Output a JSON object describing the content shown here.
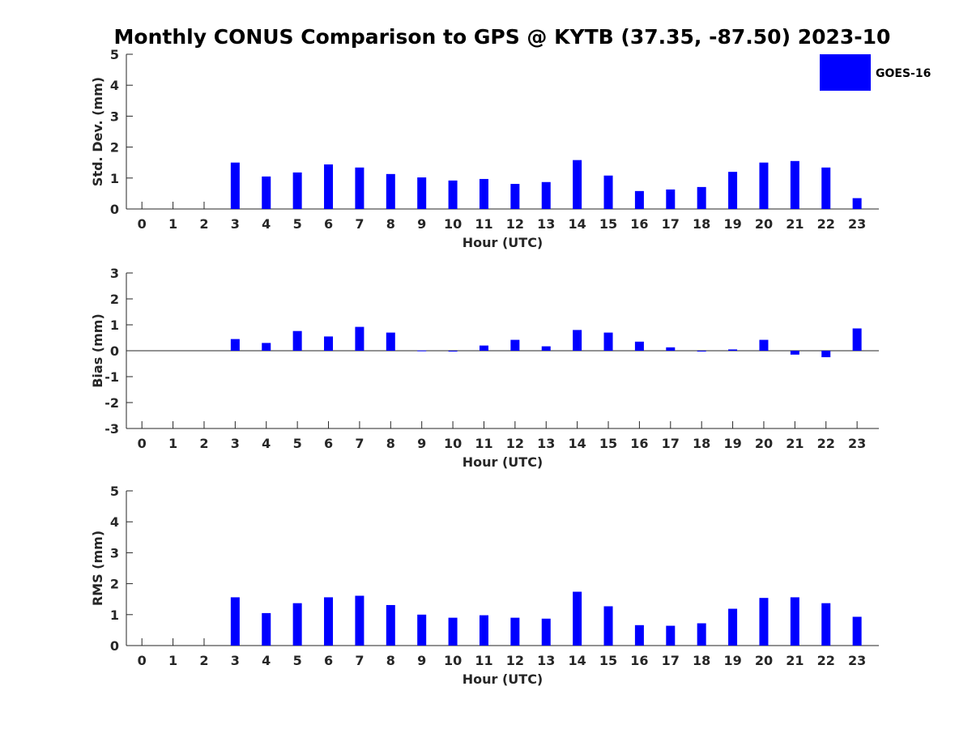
{
  "title": "Monthly CONUS Comparison to GPS @ KYTB (37.35, -87.50) 2023-10",
  "legend": {
    "label": "GOES-16",
    "color": "#0000ff",
    "placement": "top-right"
  },
  "chart_data": [
    {
      "type": "bar",
      "name": "std-dev",
      "xlabel": "Hour (UTC)",
      "ylabel": "Std. Dev. (mm)",
      "ylim": [
        0,
        5
      ],
      "yticks": [
        0,
        1,
        2,
        3,
        4,
        5
      ],
      "categories": [
        "0",
        "1",
        "2",
        "3",
        "4",
        "5",
        "6",
        "7",
        "8",
        "9",
        "10",
        "11",
        "12",
        "13",
        "14",
        "15",
        "16",
        "17",
        "18",
        "19",
        "20",
        "21",
        "22",
        "23"
      ],
      "series": [
        {
          "name": "GOES-16",
          "values": [
            null,
            null,
            null,
            1.5,
            1.05,
            1.18,
            1.44,
            1.34,
            1.13,
            1.02,
            0.92,
            0.97,
            0.81,
            0.87,
            1.58,
            1.08,
            0.58,
            0.63,
            0.71,
            1.2,
            1.5,
            1.55,
            1.34,
            0.35
          ]
        }
      ]
    },
    {
      "type": "bar",
      "name": "bias",
      "xlabel": "Hour (UTC)",
      "ylabel": "Bias (mm)",
      "ylim": [
        -3,
        3
      ],
      "yticks": [
        -3,
        -2,
        -1,
        0,
        1,
        2,
        3
      ],
      "categories": [
        "0",
        "1",
        "2",
        "3",
        "4",
        "5",
        "6",
        "7",
        "8",
        "9",
        "10",
        "11",
        "12",
        "13",
        "14",
        "15",
        "16",
        "17",
        "18",
        "19",
        "20",
        "21",
        "22",
        "23"
      ],
      "series": [
        {
          "name": "GOES-16",
          "values": [
            null,
            null,
            null,
            0.45,
            0.3,
            0.76,
            0.55,
            0.92,
            0.7,
            0.01,
            -0.02,
            0.2,
            0.42,
            0.17,
            0.8,
            0.7,
            0.35,
            0.13,
            -0.02,
            0.05,
            0.42,
            -0.15,
            -0.25,
            0.86
          ]
        }
      ]
    },
    {
      "type": "bar",
      "name": "rms",
      "xlabel": "Hour (UTC)",
      "ylabel": "RMS (mm)",
      "ylim": [
        0,
        5
      ],
      "yticks": [
        0,
        1,
        2,
        3,
        4,
        5
      ],
      "categories": [
        "0",
        "1",
        "2",
        "3",
        "4",
        "5",
        "6",
        "7",
        "8",
        "9",
        "10",
        "11",
        "12",
        "13",
        "14",
        "15",
        "16",
        "17",
        "18",
        "19",
        "20",
        "21",
        "22",
        "23"
      ],
      "series": [
        {
          "name": "GOES-16",
          "values": [
            null,
            null,
            null,
            1.56,
            1.05,
            1.37,
            1.56,
            1.61,
            1.31,
            1.0,
            0.9,
            0.98,
            0.9,
            0.87,
            1.74,
            1.27,
            0.66,
            0.64,
            0.72,
            1.19,
            1.54,
            1.56,
            1.37,
            0.93
          ]
        }
      ]
    }
  ]
}
